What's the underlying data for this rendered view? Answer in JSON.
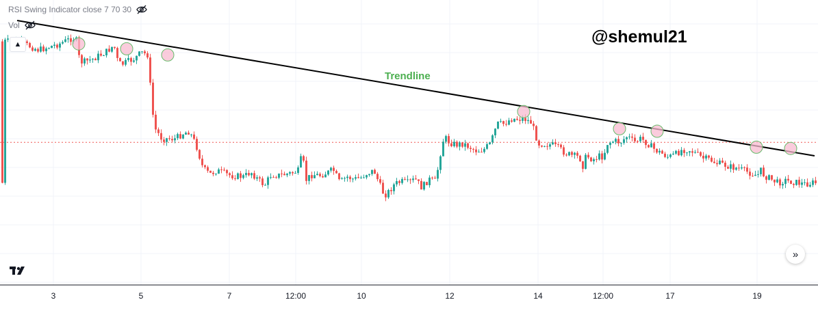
{
  "indicator_legend": {
    "label": "RSI Swing Indicator close 7 70 30",
    "visibility_icon": "eye-off-icon"
  },
  "volume_legend": {
    "label": "Vol",
    "visibility_icon": "eye-off-icon"
  },
  "watermark": "@shemul21",
  "colors": {
    "up": "#26a69a",
    "down": "#ef5350",
    "trendline": "#000000",
    "annotation": "#4caf50",
    "highlight_fill": "#f8bbd0",
    "highlight_stroke": "#66bb6a",
    "grid": "#f0f3fa",
    "price_line": "#ef5350"
  },
  "chart_data": {
    "type": "candlestick",
    "title": "",
    "x_ticks": [
      "3",
      "5",
      "7",
      "12:00",
      "10",
      "12",
      "14",
      "12:00",
      "17",
      "19"
    ],
    "grid": true,
    "price_scale_visible": false,
    "last_price_line": "dotted",
    "path": [
      [
        0,
        0.915
      ],
      [
        0.02,
        0.915
      ],
      [
        0.05,
        0.88
      ],
      [
        0.08,
        0.905
      ],
      [
        0.1,
        0.93
      ],
      [
        0.105,
        0.918
      ],
      [
        0.11,
        0.835
      ],
      [
        0.115,
        0.83
      ],
      [
        0.13,
        0.845
      ],
      [
        0.15,
        0.875
      ],
      [
        0.16,
        0.9
      ],
      [
        0.165,
        0.84
      ],
      [
        0.17,
        0.82
      ],
      [
        0.19,
        0.845
      ],
      [
        0.2,
        0.87
      ],
      [
        0.21,
        0.86
      ],
      [
        0.215,
        0.655
      ],
      [
        0.22,
        0.56
      ],
      [
        0.23,
        0.52
      ],
      [
        0.25,
        0.52
      ],
      [
        0.26,
        0.54
      ],
      [
        0.27,
        0.55
      ],
      [
        0.28,
        0.495
      ],
      [
        0.29,
        0.4
      ],
      [
        0.3,
        0.375
      ],
      [
        0.31,
        0.39
      ],
      [
        0.33,
        0.37
      ],
      [
        0.35,
        0.365
      ],
      [
        0.36,
        0.385
      ],
      [
        0.37,
        0.355
      ],
      [
        0.38,
        0.33
      ],
      [
        0.39,
        0.375
      ],
      [
        0.4,
        0.37
      ],
      [
        0.42,
        0.38
      ],
      [
        0.43,
        0.39
      ],
      [
        0.435,
        0.465
      ],
      [
        0.44,
        0.35
      ],
      [
        0.45,
        0.375
      ],
      [
        0.46,
        0.37
      ],
      [
        0.47,
        0.38
      ],
      [
        0.475,
        0.385
      ],
      [
        0.48,
        0.395
      ],
      [
        0.49,
        0.34
      ],
      [
        0.5,
        0.365
      ],
      [
        0.51,
        0.355
      ],
      [
        0.52,
        0.36
      ],
      [
        0.53,
        0.38
      ],
      [
        0.54,
        0.39
      ],
      [
        0.55,
        0.32
      ],
      [
        0.555,
        0.29
      ],
      [
        0.56,
        0.3
      ],
      [
        0.57,
        0.335
      ],
      [
        0.58,
        0.345
      ],
      [
        0.59,
        0.34
      ],
      [
        0.6,
        0.355
      ],
      [
        0.61,
        0.32
      ],
      [
        0.62,
        0.355
      ],
      [
        0.63,
        0.345
      ],
      [
        0.64,
        0.51
      ],
      [
        0.645,
        0.52
      ],
      [
        0.65,
        0.505
      ],
      [
        0.66,
        0.495
      ],
      [
        0.67,
        0.5
      ],
      [
        0.68,
        0.485
      ],
      [
        0.69,
        0.47
      ],
      [
        0.7,
        0.475
      ],
      [
        0.71,
        0.5
      ],
      [
        0.72,
        0.58
      ],
      [
        0.73,
        0.58
      ],
      [
        0.74,
        0.6
      ],
      [
        0.76,
        0.6
      ],
      [
        0.77,
        0.585
      ],
      [
        0.78,
        0.5
      ],
      [
        0.8,
        0.495
      ],
      [
        0.81,
        0.48
      ],
      [
        0.82,
        0.46
      ],
      [
        0.83,
        0.45
      ],
      [
        0.84,
        0.445
      ],
      [
        0.845,
        0.41
      ],
      [
        0.85,
        0.45
      ],
      [
        0.86,
        0.435
      ],
      [
        0.87,
        0.45
      ],
      [
        0.875,
        0.445
      ],
      [
        0.88,
        0.5
      ],
      [
        0.89,
        0.51
      ],
      [
        0.9,
        0.505
      ],
      [
        0.91,
        0.53
      ],
      [
        0.92,
        0.505
      ],
      [
        0.93,
        0.52
      ],
      [
        0.94,
        0.5
      ],
      [
        0.95,
        0.475
      ],
      [
        0.96,
        0.46
      ],
      [
        0.97,
        0.445
      ],
      [
        0.98,
        0.455
      ],
      [
        0.99,
        0.475
      ],
      [
        1.0,
        0.475
      ],
      [
        1.01,
        0.46
      ],
      [
        1.02,
        0.44
      ],
      [
        1.03,
        0.435
      ],
      [
        1.04,
        0.42
      ],
      [
        1.05,
        0.415
      ],
      [
        1.06,
        0.405
      ],
      [
        1.07,
        0.4
      ],
      [
        1.08,
        0.39
      ],
      [
        1.09,
        0.38
      ],
      [
        1.1,
        0.37
      ],
      [
        1.105,
        0.39
      ],
      [
        1.11,
        0.37
      ],
      [
        1.12,
        0.355
      ],
      [
        1.13,
        0.34
      ],
      [
        1.14,
        0.35
      ],
      [
        1.15,
        0.345
      ],
      [
        1.16,
        0.34
      ],
      [
        1.17,
        0.335
      ],
      [
        1.18,
        0.34
      ]
    ],
    "trendline": {
      "name": "Trendline",
      "start": [
        0.02,
        1.0
      ],
      "end": [
        1.185,
        0.45
      ]
    },
    "swing_highlights": [
      {
        "x": 0.11,
        "y": 0.905
      },
      {
        "x": 0.18,
        "y": 0.885
      },
      {
        "x": 0.24,
        "y": 0.86
      },
      {
        "x": 0.76,
        "y": 0.63
      },
      {
        "x": 0.9,
        "y": 0.56
      },
      {
        "x": 0.955,
        "y": 0.55
      },
      {
        "x": 1.1,
        "y": 0.485
      },
      {
        "x": 1.15,
        "y": 0.48
      }
    ],
    "last_price_level": 0.505
  },
  "annotations": {
    "trendline_label": "Trendline"
  },
  "controls": {
    "collapse_icon": "chevron-up-icon",
    "scroll_icon": "double-chevron-right-icon",
    "logo": "tradingview-logo"
  }
}
